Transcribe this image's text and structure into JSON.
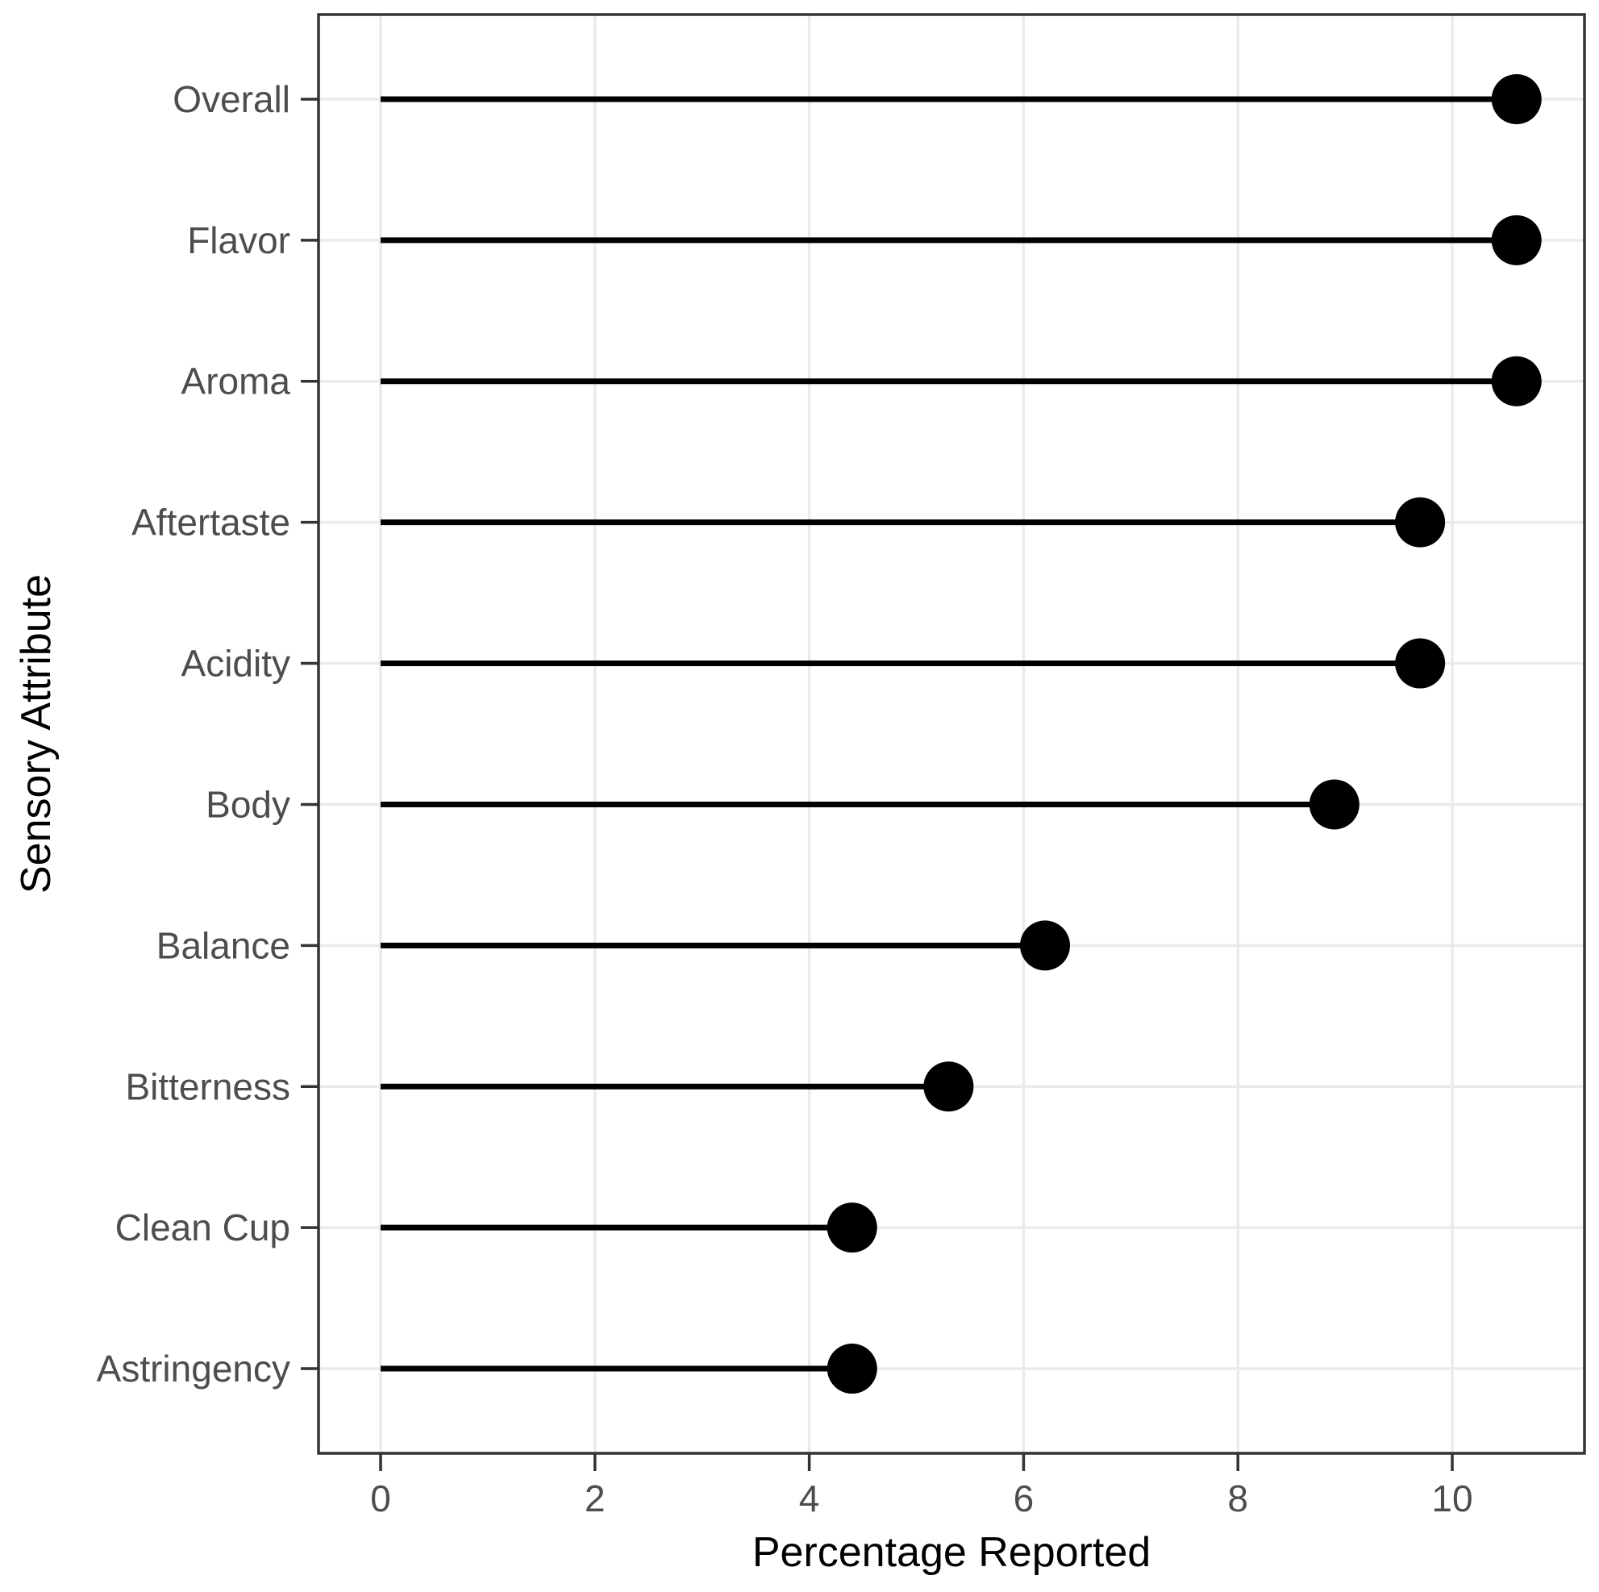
{
  "chart_data": {
    "type": "scatter",
    "style": "lollipop",
    "orientation": "horizontal",
    "title": "",
    "xlabel": "Percentage Reported",
    "ylabel": "Sensory Attribute",
    "categories": [
      "Overall",
      "Flavor",
      "Aroma",
      "Aftertaste",
      "Acidity",
      "Body",
      "Balance",
      "Bitterness",
      "Clean Cup",
      "Astringency"
    ],
    "values": [
      10.6,
      10.6,
      10.6,
      9.7,
      9.7,
      8.9,
      6.2,
      5.3,
      4.4,
      4.4
    ],
    "x_ticks": [
      0,
      2,
      4,
      6,
      8,
      10
    ],
    "xlim": [
      -0.58,
      11.23
    ],
    "grid": "major-only",
    "legend": "none",
    "colors": {
      "point": "#000000",
      "stem": "#000000",
      "grid": "#ebebeb",
      "panel_border": "#333333",
      "tick_mark": "#333333",
      "axis_text": "#4d4d4d",
      "axis_title": "#000000",
      "background": "#ffffff"
    }
  }
}
